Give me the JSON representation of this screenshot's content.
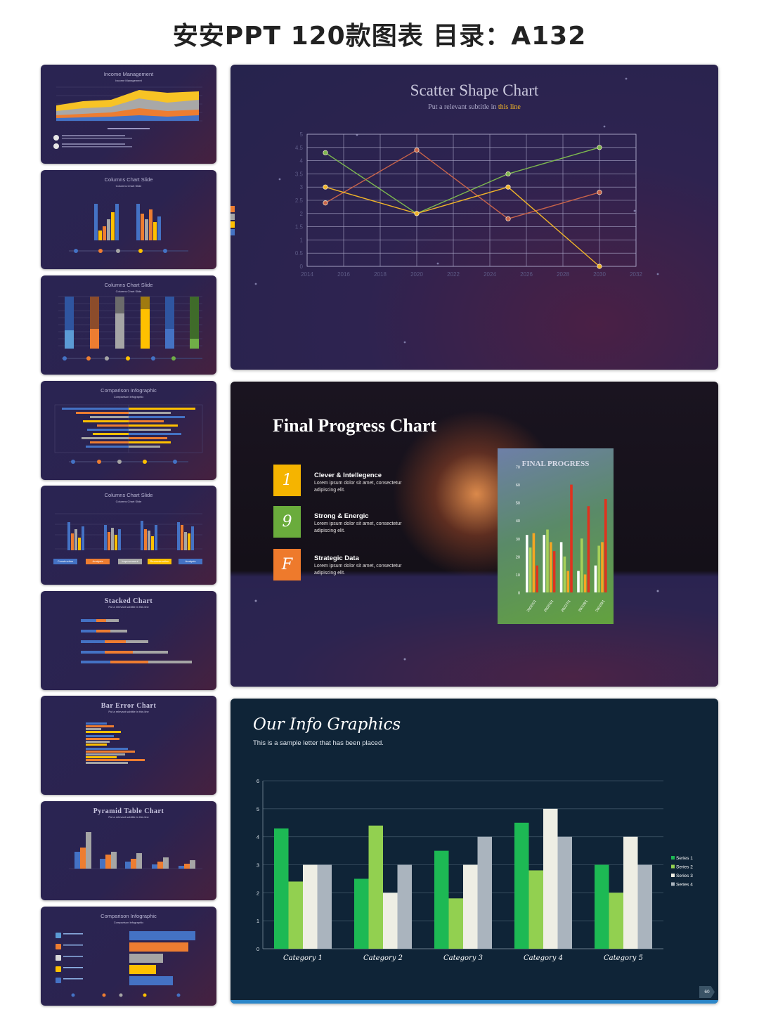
{
  "page": {
    "title": "安安PPT 120款图表 目录：A132"
  },
  "thumbnails": [
    {
      "title": "Income Management",
      "subtitle": "Income Management",
      "colors": [
        "#f7c325",
        "#a8a8a8",
        "#ed7d31",
        "#4472c4"
      ]
    },
    {
      "title": "Columns Chart Slide",
      "subtitle": "Columns Chart Slide",
      "colors": [
        "#4472c4",
        "#ed7d31",
        "#a5a5a5",
        "#ffc000"
      ]
    },
    {
      "title": "Columns Chart Slide",
      "subtitle": "Columns Chart Slide",
      "colors": [
        "#4472c4",
        "#ed7d31",
        "#a5a5a5",
        "#ffc000",
        "#4472c4",
        "#70ad47"
      ]
    },
    {
      "title": "Comparison Infographic",
      "subtitle": "Comparison Infographic",
      "colors": [
        "#4472c4",
        "#ed7d31",
        "#a5a5a5",
        "#ffc000"
      ]
    },
    {
      "title": "Columns Chart Slide",
      "subtitle": "Columns Chart Slide",
      "labels": [
        "Construction",
        "Analysis",
        "Improvement",
        "Reconstruction",
        "Analysis"
      ],
      "colors": [
        "#4472c4",
        "#ed7d31",
        "#a5a5a5",
        "#ffc000",
        "#4472c4"
      ]
    },
    {
      "title": "Stacked Chart",
      "subtitle": "Put a relevant subtitle in this line"
    },
    {
      "title": "Bar Error Chart",
      "subtitle": "Put a relevant subtitle in this line"
    },
    {
      "title": "Pyramid Table Chart",
      "subtitle": "Put a relevant subtitle in this line"
    },
    {
      "title": "Comparison Infographic",
      "subtitle": "Comparison Infographic"
    }
  ],
  "slide1": {
    "title": "Scatter Shape Chart",
    "subtitle_pre": "Put a relevant subtitle in ",
    "subtitle_highlight": "this line",
    "highlight_color": "#f0b429",
    "chart_data": {
      "type": "scatter",
      "x_ticks": [
        "2014",
        "2016",
        "2018",
        "2020",
        "2022",
        "2024",
        "2026",
        "2028",
        "2030",
        "2032"
      ],
      "y_ticks": [
        "0",
        "0.5",
        "1",
        "1.5",
        "2",
        "2.5",
        "3",
        "3.5",
        "4",
        "4.5",
        "5"
      ],
      "xlim": [
        2014,
        2032
      ],
      "ylim": [
        0,
        5
      ],
      "grid": true,
      "series": [
        {
          "color": "#7db84f",
          "x": [
            2015,
            2020,
            2025,
            2030
          ],
          "y": [
            4.3,
            2.0,
            3.5,
            4.5
          ]
        },
        {
          "color": "#c8634a",
          "x": [
            2015,
            2020,
            2025,
            2030
          ],
          "y": [
            2.4,
            4.4,
            1.8,
            2.8
          ]
        },
        {
          "color": "#f0b429",
          "x": [
            2015,
            2020,
            2025,
            2030
          ],
          "y": [
            3.0,
            2.0,
            3.0,
            0.0
          ]
        }
      ]
    }
  },
  "slide2": {
    "title": "Final Progress Chart",
    "items": [
      {
        "badge": "1",
        "color": "#f5b400",
        "title": "Clever & Intellegence",
        "text": "Lorem ipsum dolor sit amet, consectetur adipiscing elit."
      },
      {
        "badge": "9",
        "color": "#6aac3c",
        "title": "Strong & Energic",
        "text": "Lorem ipsum dolor sit amet, consectetur adipiscing elit."
      },
      {
        "badge": "F",
        "color": "#ee7a2c",
        "title": "Strategic Data",
        "text": "Lorem ipsum dolor sit amet, consectetur adipiscing elit."
      }
    ],
    "chart_data": {
      "type": "bar",
      "title": "FINAL PROGRESS",
      "categories": [
        "2002/1/1",
        "2002/4/1",
        "2002/7/1",
        "2002/8/1",
        "2002/9/1"
      ],
      "y_ticks": [
        "0",
        "10",
        "20",
        "30",
        "40",
        "50",
        "60",
        "70"
      ],
      "ylim": [
        0,
        70
      ],
      "series": [
        {
          "color": "#ffffff",
          "values": [
            32,
            32,
            28,
            12,
            15
          ]
        },
        {
          "color": "#a6d05a",
          "values": [
            25,
            35,
            20,
            30,
            26
          ]
        },
        {
          "color": "#f5a623",
          "values": [
            33,
            28,
            12,
            10,
            28
          ]
        },
        {
          "color": "#e0321e",
          "values": [
            15,
            23,
            60,
            48,
            52
          ]
        }
      ]
    }
  },
  "slide3": {
    "title": "Our Info Graphics",
    "subtitle": "This is a sample letter that has been placed.",
    "page_number": "60",
    "chart_data": {
      "type": "bar",
      "categories": [
        "Category 1",
        "Category 2",
        "Category 3",
        "Category 4",
        "Category 5"
      ],
      "y_ticks": [
        "0",
        "1",
        "2",
        "3",
        "4",
        "5",
        "6"
      ],
      "ylim": [
        0,
        6
      ],
      "grid": true,
      "legend": "right",
      "series": [
        {
          "name": "Series 1",
          "color": "#1db954",
          "values": [
            4.3,
            2.5,
            3.5,
            4.5,
            3.0
          ]
        },
        {
          "name": "Series 2",
          "color": "#92d050",
          "values": [
            2.4,
            4.4,
            1.8,
            2.8,
            2.0
          ]
        },
        {
          "name": "Series 3",
          "color": "#eeeee4",
          "values": [
            3.0,
            2.0,
            3.0,
            5.0,
            4.0
          ]
        },
        {
          "name": "Series 4",
          "color": "#aab4be",
          "values": [
            3.0,
            3.0,
            4.0,
            4.0,
            3.0
          ]
        }
      ]
    }
  },
  "side_tab_colors": [
    "#ed7d31",
    "#a5a5a5",
    "#ffc000",
    "#4472c4"
  ]
}
